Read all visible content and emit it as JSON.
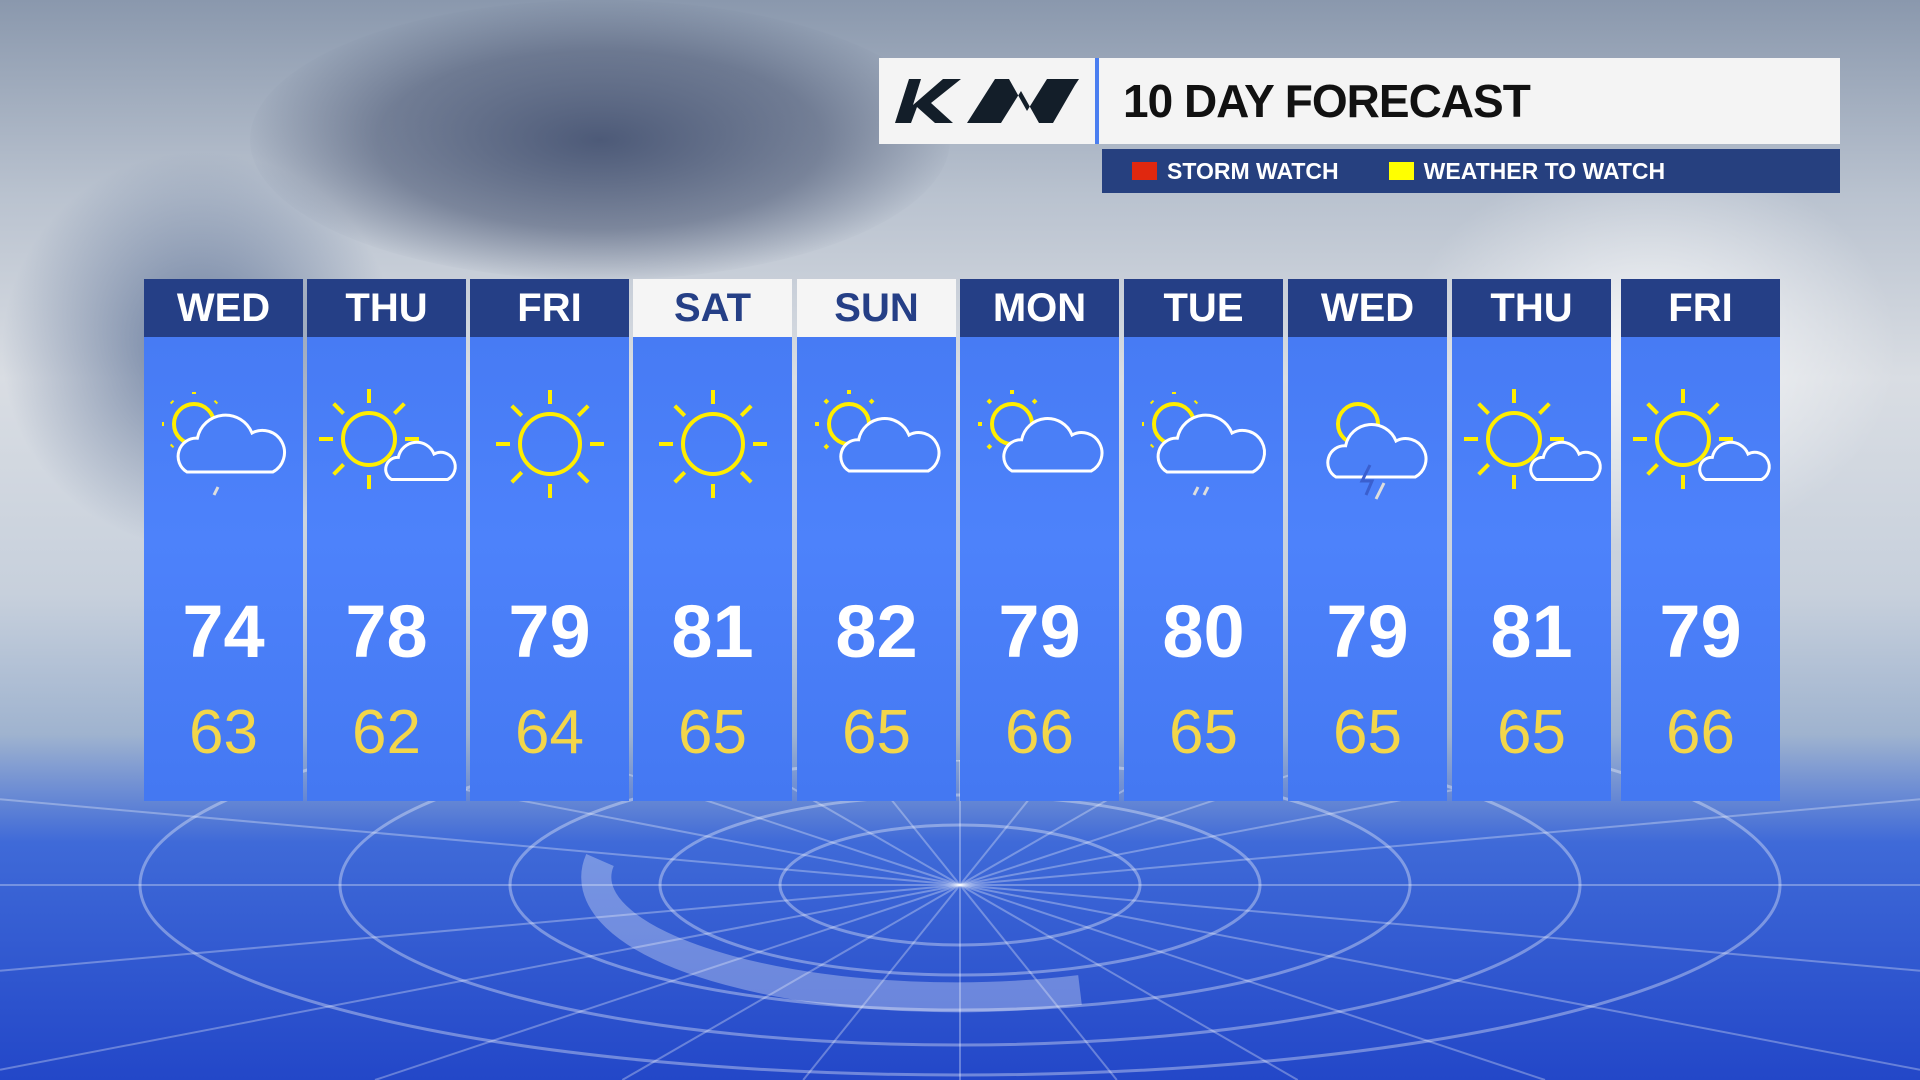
{
  "header": {
    "brand": "KIA",
    "title": "10 DAY FORECAST"
  },
  "legend": [
    {
      "label": "STORM WATCH",
      "color": "#e0280f"
    },
    {
      "label": "WEATHER TO WATCH",
      "color": "#ffff00"
    }
  ],
  "colors": {
    "header_bg": "#253f86",
    "column_bg": "#4a7ff7",
    "high": "#ffffff",
    "low": "#f3d64a",
    "sun": "#ffee00"
  },
  "days": [
    {
      "day": "WED",
      "hi": "74",
      "lo": "63",
      "icon": "partly-cloudy-drizzle-icon",
      "weekend": false
    },
    {
      "day": "THU",
      "hi": "78",
      "lo": "62",
      "icon": "mostly-sunny-icon",
      "weekend": false
    },
    {
      "day": "FRI",
      "hi": "79",
      "lo": "64",
      "icon": "sunny-icon",
      "weekend": false
    },
    {
      "day": "SAT",
      "hi": "81",
      "lo": "65",
      "icon": "sunny-icon",
      "weekend": true
    },
    {
      "day": "SUN",
      "hi": "82",
      "lo": "65",
      "icon": "partly-cloudy-icon",
      "weekend": true
    },
    {
      "day": "MON",
      "hi": "79",
      "lo": "66",
      "icon": "partly-cloudy-icon",
      "weekend": false
    },
    {
      "day": "TUE",
      "hi": "80",
      "lo": "65",
      "icon": "partly-cloudy-showers-icon",
      "weekend": false
    },
    {
      "day": "WED",
      "hi": "79",
      "lo": "65",
      "icon": "thunderstorm-icon",
      "weekend": false
    },
    {
      "day": "THU",
      "hi": "81",
      "lo": "65",
      "icon": "mostly-sunny-icon",
      "weekend": false
    },
    {
      "day": "FRI",
      "hi": "79",
      "lo": "66",
      "icon": "mostly-sunny-icon",
      "weekend": false
    }
  ]
}
